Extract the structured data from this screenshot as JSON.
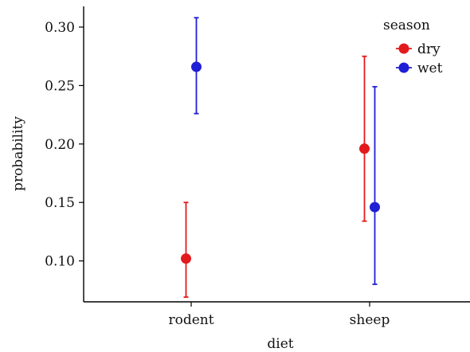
{
  "chart_data": {
    "type": "scatter",
    "subtype": "point-range",
    "title": "",
    "xlabel": "diet",
    "ylabel": "probability",
    "categories": [
      "rodent",
      "sheep"
    ],
    "ylim": [
      0.065,
      0.315
    ],
    "yticks": [
      0.1,
      0.15,
      0.2,
      0.25,
      0.3
    ],
    "ytick_labels": [
      "0.10",
      "0.15",
      "0.20",
      "0.25",
      "0.30"
    ],
    "grid": false,
    "legend": {
      "title": "season",
      "placement": "top-right"
    },
    "series": [
      {
        "name": "dry",
        "color": "#e31a1c",
        "points": [
          {
            "category": "rodent",
            "value": 0.102,
            "lower": 0.069,
            "upper": 0.15
          },
          {
            "category": "sheep",
            "value": 0.196,
            "lower": 0.134,
            "upper": 0.275
          }
        ]
      },
      {
        "name": "wet",
        "color": "#1f1fd6",
        "points": [
          {
            "category": "rodent",
            "value": 0.266,
            "lower": 0.226,
            "upper": 0.308
          },
          {
            "category": "sheep",
            "value": 0.146,
            "lower": 0.08,
            "upper": 0.249
          }
        ]
      }
    ]
  }
}
